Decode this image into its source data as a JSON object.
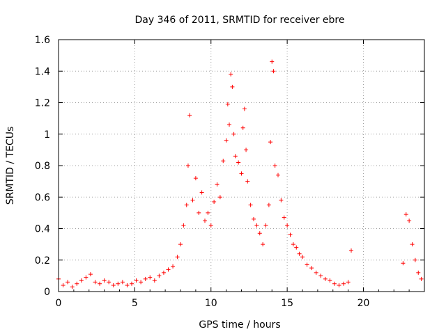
{
  "chart_data": {
    "type": "scatter",
    "title": "Day 346 of 2011, SRMTID for receiver ebre",
    "xlabel": "GPS time / hours",
    "ylabel": "SRMTID / TECUs",
    "xlim": [
      0,
      24
    ],
    "ylim": [
      0,
      1.6
    ],
    "xticks": [
      0,
      5,
      10,
      15,
      20
    ],
    "xtick_labels": [
      "0",
      "5",
      "10",
      "15",
      "20"
    ],
    "yticks": [
      0,
      0.2,
      0.4,
      0.6,
      0.8,
      1,
      1.2,
      1.4,
      1.6
    ],
    "ytick_labels": [
      "0",
      "0.2",
      "0.4",
      "0.6",
      "0.8",
      "1",
      "1.2",
      "1.4",
      "1.6"
    ],
    "grid": true,
    "marker": "+",
    "color": "#ff0000",
    "series": [
      {
        "name": "SRMTID",
        "x": [
          0.0,
          0.3,
          0.6,
          0.9,
          1.2,
          1.5,
          1.8,
          2.1,
          2.4,
          2.7,
          3.0,
          3.3,
          3.6,
          3.9,
          4.2,
          4.5,
          4.8,
          5.1,
          5.4,
          5.7,
          6.0,
          6.3,
          6.6,
          6.9,
          7.2,
          7.5,
          7.8,
          8.0,
          8.2,
          8.4,
          8.5,
          8.6,
          8.8,
          9.0,
          9.2,
          9.4,
          9.6,
          9.8,
          10.0,
          10.2,
          10.4,
          10.6,
          10.8,
          11.0,
          11.1,
          11.2,
          11.3,
          11.4,
          11.5,
          11.6,
          11.8,
          12.0,
          12.1,
          12.2,
          12.3,
          12.4,
          12.6,
          12.8,
          13.0,
          13.2,
          13.4,
          13.6,
          13.8,
          13.9,
          14.0,
          14.1,
          14.2,
          14.4,
          14.6,
          14.8,
          15.0,
          15.2,
          15.4,
          15.6,
          15.8,
          16.0,
          16.3,
          16.6,
          16.9,
          17.2,
          17.5,
          17.8,
          18.1,
          18.4,
          18.7,
          19.0,
          19.2,
          22.6,
          22.8,
          23.0,
          23.2,
          23.4,
          23.6,
          23.8
        ],
        "y": [
          0.08,
          0.04,
          0.06,
          0.03,
          0.05,
          0.07,
          0.09,
          0.11,
          0.06,
          0.05,
          0.07,
          0.06,
          0.04,
          0.05,
          0.06,
          0.04,
          0.05,
          0.07,
          0.06,
          0.08,
          0.09,
          0.07,
          0.1,
          0.12,
          0.14,
          0.16,
          0.22,
          0.3,
          0.42,
          0.55,
          0.8,
          1.12,
          0.58,
          0.72,
          0.5,
          0.63,
          0.45,
          0.5,
          0.42,
          0.57,
          0.68,
          0.6,
          0.83,
          0.96,
          1.19,
          1.06,
          1.38,
          1.3,
          1.0,
          0.86,
          0.82,
          0.75,
          1.04,
          1.16,
          0.9,
          0.7,
          0.55,
          0.46,
          0.42,
          0.37,
          0.3,
          0.42,
          0.55,
          0.95,
          1.46,
          1.4,
          0.8,
          0.74,
          0.58,
          0.47,
          0.42,
          0.36,
          0.3,
          0.28,
          0.24,
          0.22,
          0.17,
          0.15,
          0.12,
          0.1,
          0.08,
          0.07,
          0.05,
          0.04,
          0.05,
          0.06,
          0.26,
          0.18,
          0.49,
          0.45,
          0.3,
          0.2,
          0.12,
          0.08
        ]
      }
    ]
  }
}
